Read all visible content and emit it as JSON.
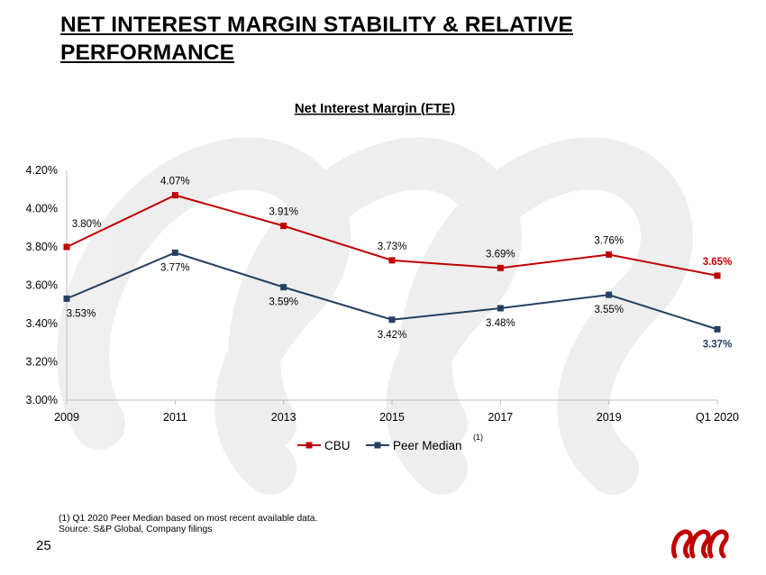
{
  "slide": {
    "title": "NET INTEREST MARGIN STABILITY & RELATIVE PERFORMANCE",
    "page_number": "25",
    "footnote_1": "(1) Q1 2020 Peer Median based on most recent available data.",
    "footnote_2": "Source:  S&P Global, Company filings"
  },
  "colors": {
    "cbu": "#c00000",
    "peer": "#243f60",
    "watermark": "#ececec",
    "axis": "#bfbfbf",
    "logo": "#c00000"
  },
  "chart_data": {
    "type": "line",
    "title": "Net Interest Margin (FTE)",
    "categories": [
      "2009",
      "2011",
      "2013",
      "2015",
      "2017",
      "2019",
      "Q1 2020"
    ],
    "ylim": [
      3.0,
      4.2
    ],
    "yticks": [
      "3.00%",
      "3.20%",
      "3.40%",
      "3.60%",
      "3.80%",
      "4.00%",
      "4.20%"
    ],
    "ytick_values": [
      3.0,
      3.2,
      3.4,
      3.6,
      3.8,
      4.0,
      4.2
    ],
    "grid": false,
    "legend_position": "bottom",
    "series": [
      {
        "name": "CBU",
        "legend_label": "CBU",
        "color_key": "cbu",
        "values": [
          3.8,
          4.07,
          3.91,
          3.73,
          3.69,
          3.76,
          3.65
        ],
        "labels": [
          "3.80%",
          "4.07%",
          "3.91%",
          "3.73%",
          "3.69%",
          "3.76%",
          "3.65%"
        ]
      },
      {
        "name": "Peer Median",
        "legend_label": "Peer Median",
        "legend_superscript": "(1)",
        "color_key": "peer",
        "values": [
          3.53,
          3.77,
          3.59,
          3.42,
          3.48,
          3.55,
          3.37
        ],
        "labels": [
          "3.53%",
          "3.77%",
          "3.59%",
          "3.42%",
          "3.48%",
          "3.55%",
          "3.37%"
        ]
      }
    ]
  }
}
